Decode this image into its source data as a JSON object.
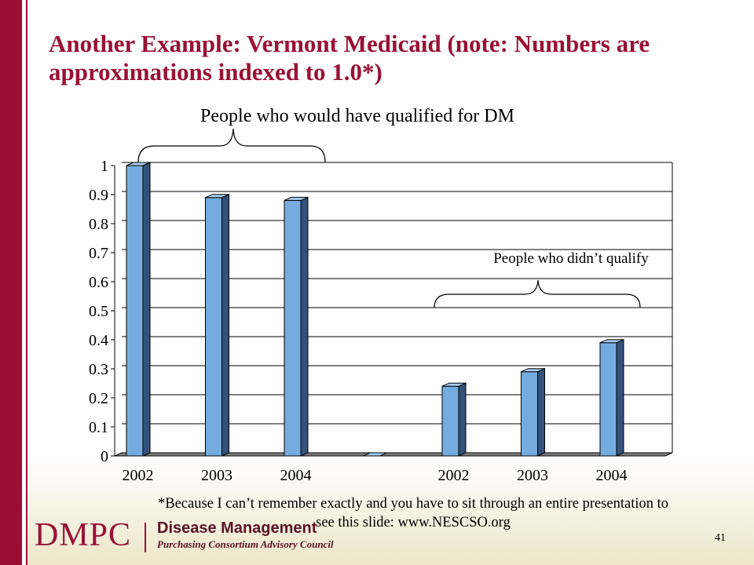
{
  "slide": {
    "title": "Another Example:  Vermont Medicaid (note: Numbers are approximations indexed to 1.0*)",
    "footnote_line1": "*Because I can’t remember exactly and you have to sit through an entire presentation to",
    "footnote_line2": "see this slide:  www.NESCSO.org",
    "page_number": "41"
  },
  "logo": {
    "acronym": "DMPC",
    "line1": "Disease Management",
    "line2": "Purchasing Consortium Advisory Council"
  },
  "colors": {
    "brand": "#9a1035",
    "bar_front": "#74acdf",
    "bar_side": "#34517a",
    "bar_top": "#a8cdf0"
  },
  "chart_data": {
    "type": "bar",
    "categories": [
      "2002",
      "2003",
      "2004",
      "",
      "2002",
      "2003",
      "2004"
    ],
    "values": [
      1.0,
      0.89,
      0.88,
      0,
      0.24,
      0.29,
      0.39
    ],
    "ylim": [
      0,
      1
    ],
    "yticks": [
      "0",
      "0.1",
      "0.2",
      "0.3",
      "0.4",
      "0.5",
      "0.6",
      "0.7",
      "0.8",
      "0.9",
      "1"
    ],
    "grid": true,
    "annotations": [
      "People who would have qualified for DM",
      "People who didn’t qualify"
    ]
  }
}
